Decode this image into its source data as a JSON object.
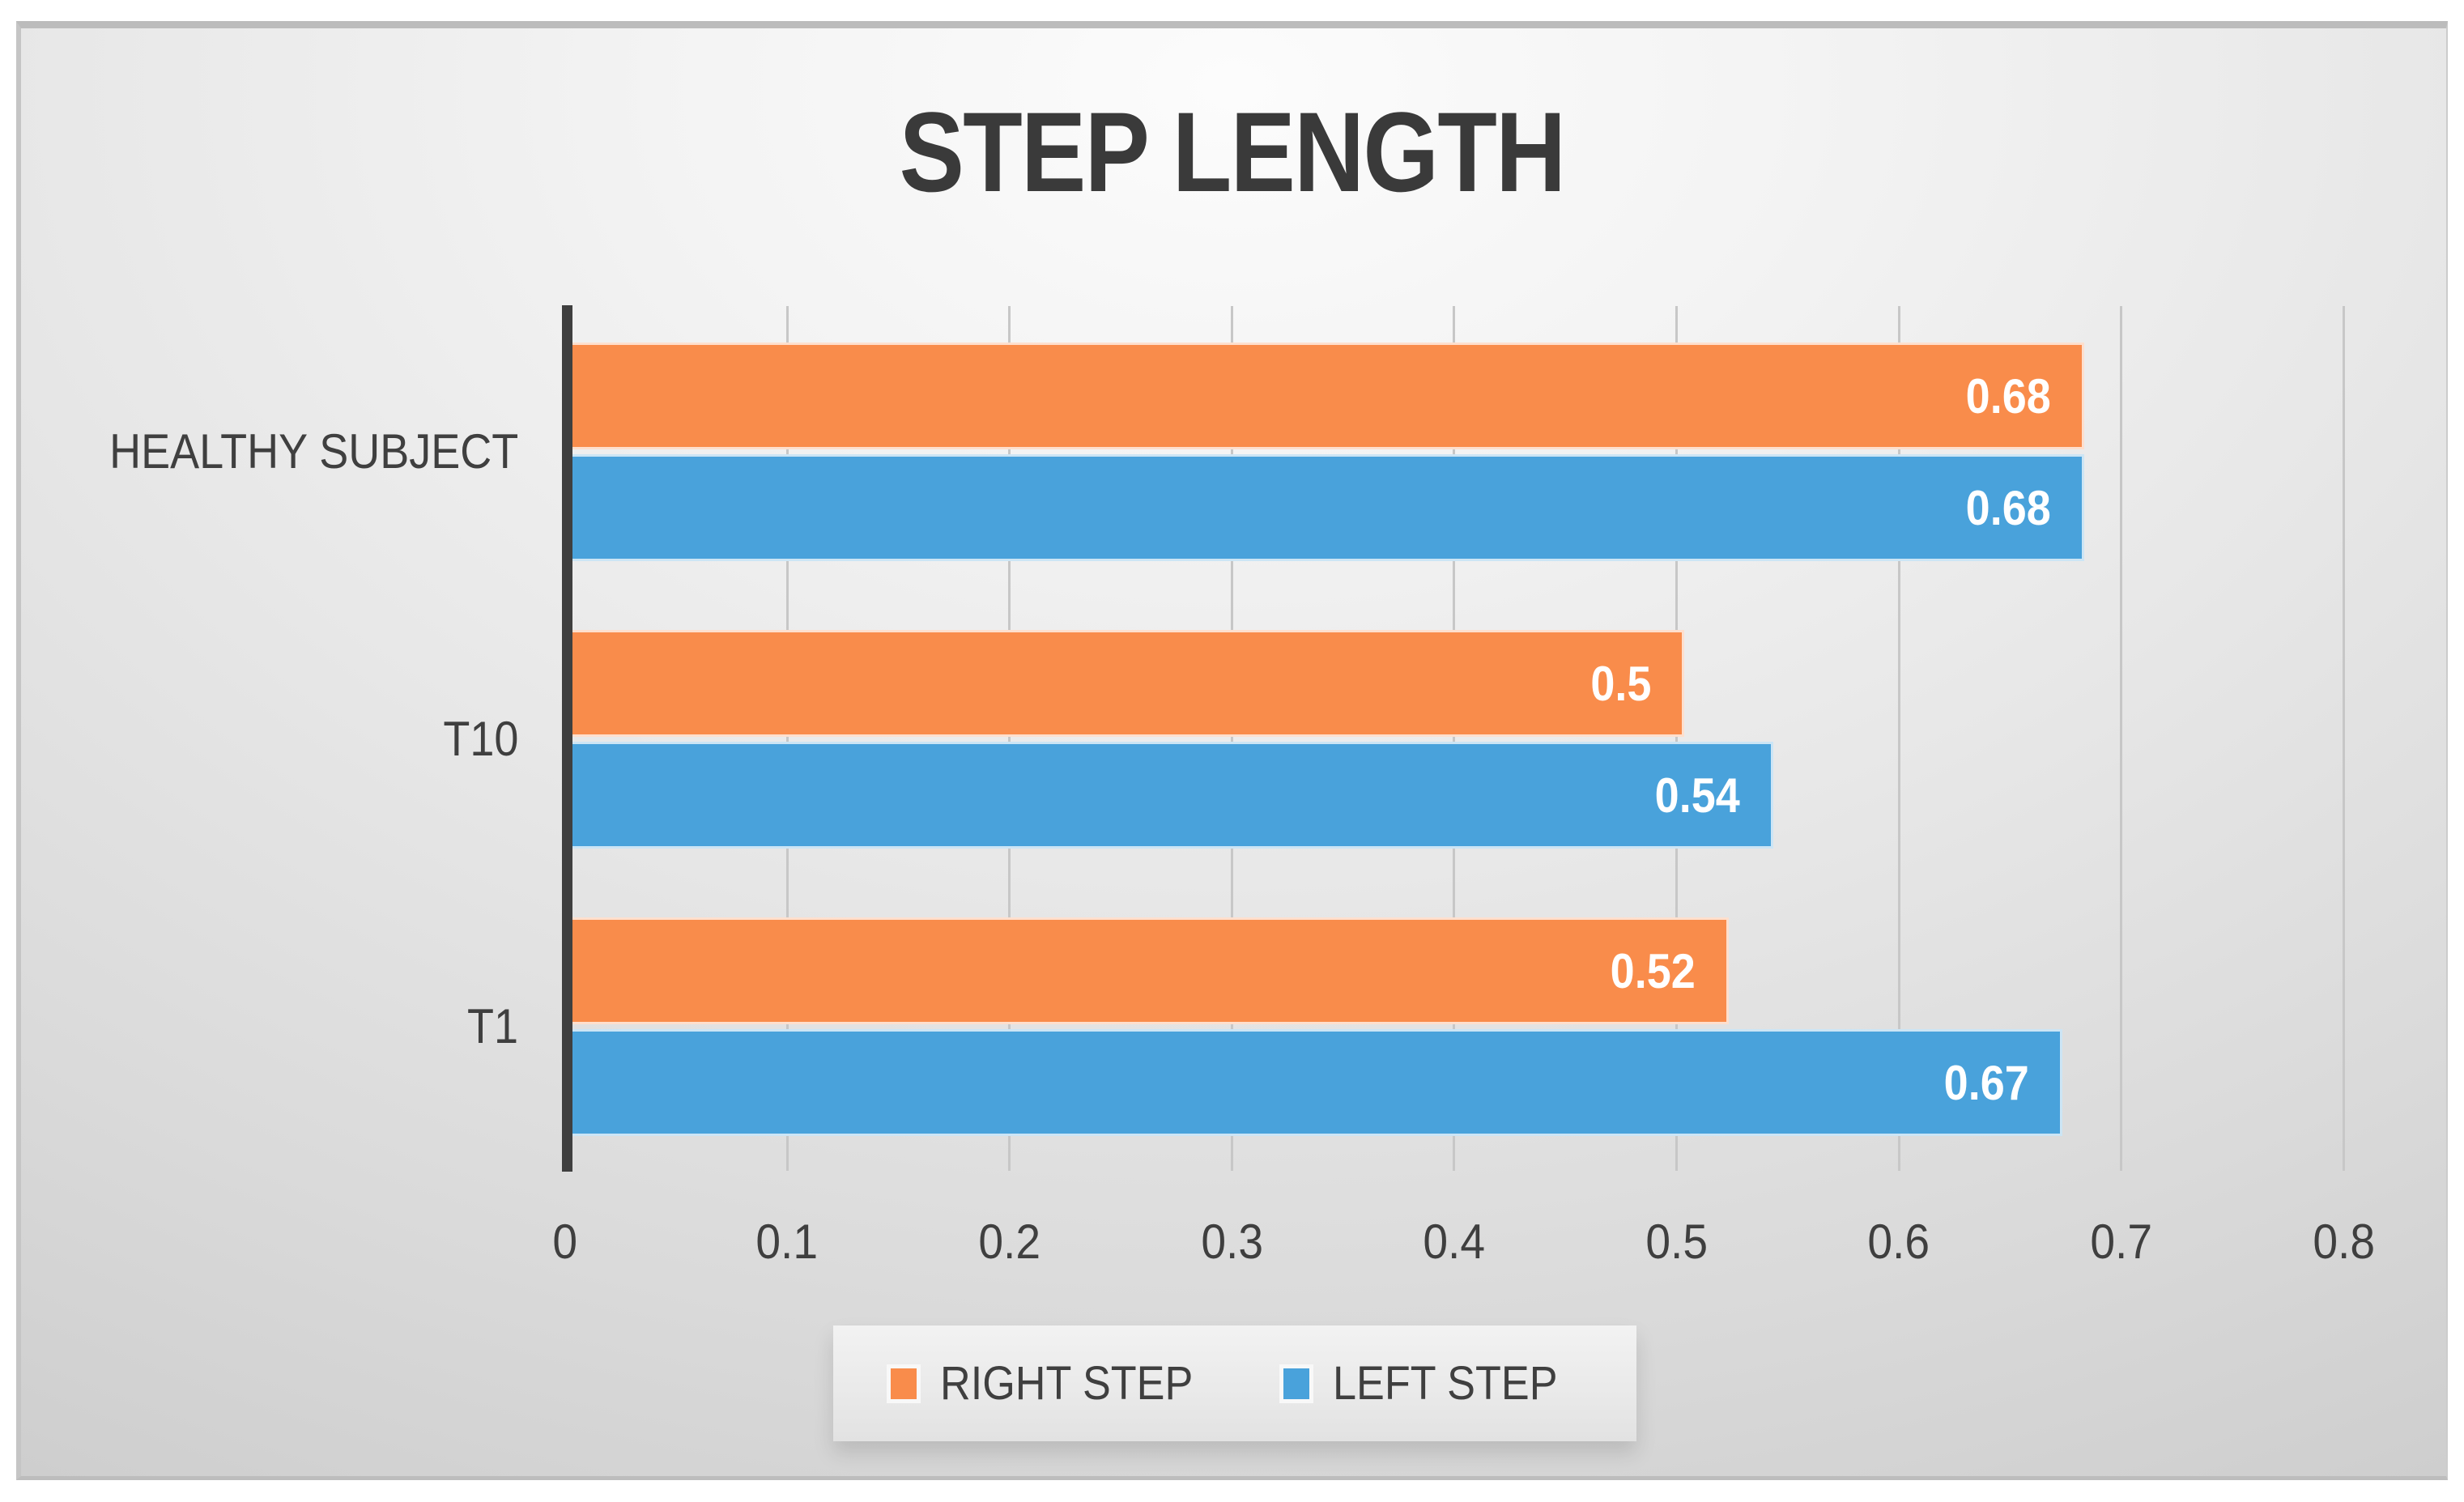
{
  "title": "STEP LENGTH",
  "colors": {
    "right_step": "#F98C4B",
    "left_step": "#49A2DB",
    "axis_line": "#3F3F3F",
    "gridline": "#C7C7C7",
    "text": "#3F3F3F",
    "title_text": "#3A3A3A",
    "panel_border": "#BCBCBC",
    "legend_background": "#ECECEC",
    "bar_value_text": "#FFFFFF"
  },
  "chart_data": {
    "type": "bar",
    "orientation": "horizontal",
    "title": "STEP LENGTH",
    "categories": [
      "HEALTHY SUBJECT",
      "T10",
      "T1"
    ],
    "series": [
      {
        "name": "RIGHT STEP",
        "color": "#F98C4B",
        "values": [
          0.68,
          0.5,
          0.52
        ],
        "labels": [
          "0.68",
          "0.5",
          "0.52"
        ]
      },
      {
        "name": "LEFT STEP",
        "color": "#49A2DB",
        "values": [
          0.68,
          0.54,
          0.67
        ],
        "labels": [
          "0.68",
          "0.54",
          "0.67"
        ]
      }
    ],
    "xlabel": "",
    "ylabel": "",
    "xlim": [
      0,
      0.8
    ],
    "x_ticks": [
      "0",
      "0.1",
      "0.2",
      "0.3",
      "0.4",
      "0.5",
      "0.6",
      "0.7",
      "0.8"
    ],
    "grid": true,
    "data_labels": "inside-end, white bold",
    "legend_position": "bottom"
  },
  "legend": {
    "items": [
      {
        "label": "RIGHT STEP",
        "color": "#F98C4B"
      },
      {
        "label": "LEFT STEP",
        "color": "#49A2DB"
      }
    ]
  }
}
